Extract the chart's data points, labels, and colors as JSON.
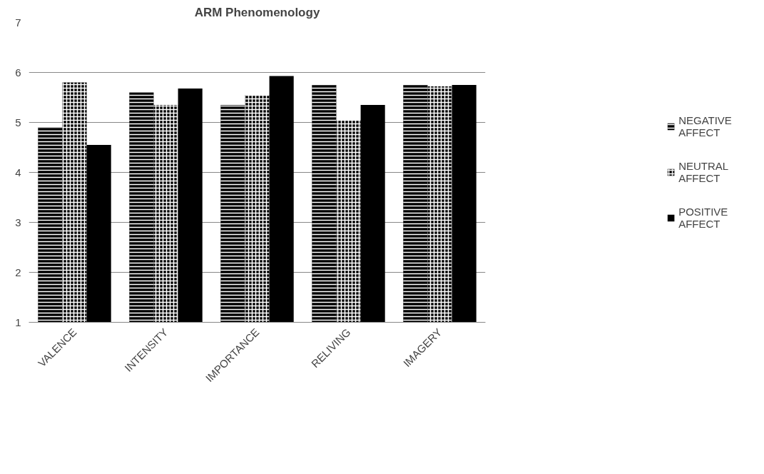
{
  "chart_data": {
    "type": "bar",
    "title": "ARM Phenomenology",
    "categories": [
      "VALENCE",
      "INTENSITY",
      "IMPORTANCE",
      "RELIVING",
      "IMAGERY"
    ],
    "series": [
      {
        "name": "NEGATIVE AFFECT",
        "color": "#000000",
        "values": [
          4.9,
          5.6,
          5.35,
          5.75,
          5.75
        ]
      },
      {
        "name": "NEUTRAL AFFECT",
        "color": "#000000",
        "values": [
          5.8,
          5.35,
          5.55,
          5.05,
          5.72
        ]
      },
      {
        "name": "POSITIVE AFFECT",
        "color": "#000000",
        "values": [
          4.55,
          5.68,
          5.93,
          5.35,
          5.75
        ]
      }
    ],
    "ylim": [
      1,
      7
    ],
    "yticks": [
      1,
      2,
      3,
      4,
      5,
      6,
      7
    ],
    "grid": "y",
    "legend": "right"
  }
}
